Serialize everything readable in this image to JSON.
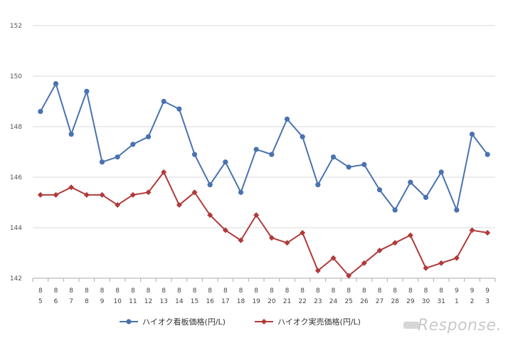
{
  "chart_data": {
    "type": "line",
    "title": "",
    "xlabel": "",
    "ylabel": "",
    "ylim": [
      142,
      152
    ],
    "yticks": [
      "142",
      "144",
      "146",
      "148",
      "150",
      "152"
    ],
    "grid": true,
    "legend_position": "bottom",
    "categories": [
      {
        "month": "8",
        "day": "5"
      },
      {
        "month": "8",
        "day": "6"
      },
      {
        "month": "8",
        "day": "7"
      },
      {
        "month": "8",
        "day": "8"
      },
      {
        "month": "8",
        "day": "9"
      },
      {
        "month": "8",
        "day": "10"
      },
      {
        "month": "8",
        "day": "11"
      },
      {
        "month": "8",
        "day": "12"
      },
      {
        "month": "8",
        "day": "13"
      },
      {
        "month": "8",
        "day": "14"
      },
      {
        "month": "8",
        "day": "15"
      },
      {
        "month": "8",
        "day": "16"
      },
      {
        "month": "8",
        "day": "17"
      },
      {
        "month": "8",
        "day": "18"
      },
      {
        "month": "8",
        "day": "19"
      },
      {
        "month": "8",
        "day": "20"
      },
      {
        "month": "8",
        "day": "21"
      },
      {
        "month": "8",
        "day": "22"
      },
      {
        "month": "8",
        "day": "23"
      },
      {
        "month": "8",
        "day": "24"
      },
      {
        "month": "8",
        "day": "25"
      },
      {
        "month": "8",
        "day": "26"
      },
      {
        "month": "8",
        "day": "27"
      },
      {
        "month": "8",
        "day": "28"
      },
      {
        "month": "8",
        "day": "29"
      },
      {
        "month": "8",
        "day": "30"
      },
      {
        "month": "8",
        "day": "31"
      },
      {
        "month": "9",
        "day": "1"
      },
      {
        "month": "9",
        "day": "2"
      },
      {
        "month": "9",
        "day": "3"
      }
    ],
    "series": [
      {
        "name": "ハイオク看板価格(円/L)",
        "color": "#4a72b0",
        "marker": "circle",
        "values": [
          148.6,
          149.7,
          147.7,
          149.4,
          146.6,
          146.8,
          147.3,
          147.6,
          149.0,
          148.7,
          146.9,
          145.7,
          146.6,
          145.4,
          147.1,
          146.9,
          148.3,
          147.6,
          145.7,
          146.8,
          146.4,
          146.5,
          145.5,
          144.7,
          145.8,
          145.2,
          146.2,
          144.7,
          147.7,
          146.9
        ]
      },
      {
        "name": "ハイオク実売価格(円/L)",
        "color": "#b03a3a",
        "marker": "diamond",
        "values": [
          145.3,
          145.3,
          145.6,
          145.3,
          145.3,
          144.9,
          145.3,
          145.4,
          146.2,
          144.9,
          145.4,
          144.5,
          143.9,
          143.5,
          144.5,
          143.6,
          143.4,
          143.8,
          142.3,
          142.8,
          142.1,
          142.6,
          143.1,
          143.4,
          143.7,
          142.4,
          142.6,
          142.8,
          143.9,
          143.8
        ]
      }
    ]
  },
  "watermark": "Response."
}
